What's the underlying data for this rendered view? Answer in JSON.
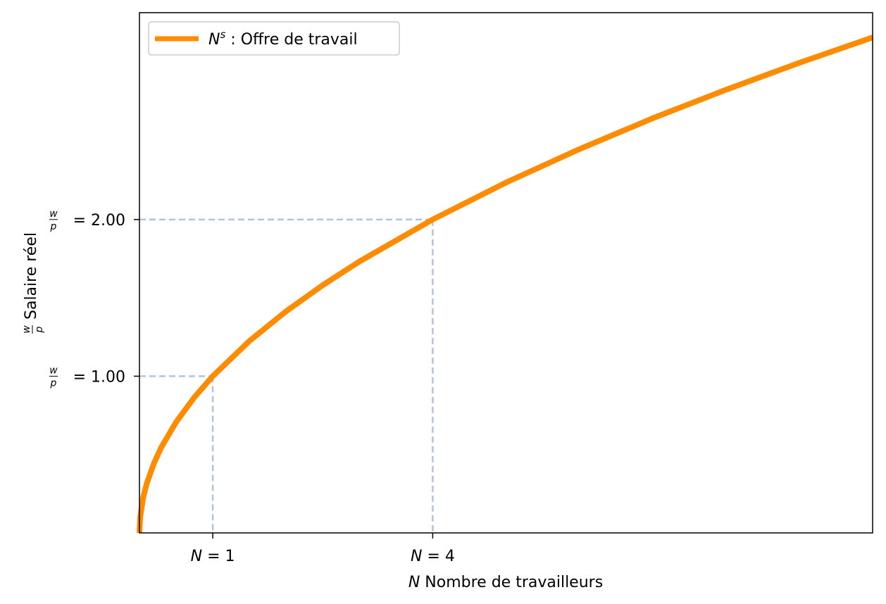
{
  "chart_data": {
    "type": "line",
    "title": "",
    "xlabel": {
      "var": "N",
      "text": "Nombre de travailleurs"
    },
    "ylabel": {
      "frac_num": "w",
      "frac_den": "p",
      "text": "Salaire réel"
    },
    "xlim": [
      0,
      10
    ],
    "ylim": [
      0,
      3.32
    ],
    "function": "y = sqrt(x)",
    "series": [
      {
        "name": "N^s : Offre de travail",
        "legend_var": "N",
        "legend_sup": "s",
        "legend_text": " : Offre de travail",
        "color": "#ff8c00",
        "x": [
          0,
          0.01,
          0.05,
          0.1,
          0.2,
          0.3,
          0.5,
          0.75,
          1,
          1.5,
          2,
          2.5,
          3,
          4,
          5,
          6,
          7,
          8,
          9,
          10
        ],
        "y": [
          0,
          0.1,
          0.224,
          0.316,
          0.447,
          0.548,
          0.707,
          0.866,
          1,
          1.225,
          1.414,
          1.581,
          1.732,
          2,
          2.236,
          2.449,
          2.646,
          2.828,
          3,
          3.162
        ]
      }
    ],
    "x_ticks": [
      {
        "value": 1,
        "var": "N",
        "label": " = 1"
      },
      {
        "value": 4,
        "var": "N",
        "label": " = 4"
      }
    ],
    "y_ticks": [
      {
        "value": 1,
        "frac_num": "w",
        "frac_den": "p",
        "label": " = 1.00"
      },
      {
        "value": 2,
        "frac_num": "w",
        "frac_den": "p",
        "label": " = 2.00"
      }
    ],
    "guides": [
      {
        "x": 1,
        "y": 1,
        "color": "#b0c4de"
      },
      {
        "x": 4,
        "y": 2,
        "color": "#b0c4de"
      }
    ],
    "grid": false,
    "legend_position": "top-left"
  }
}
